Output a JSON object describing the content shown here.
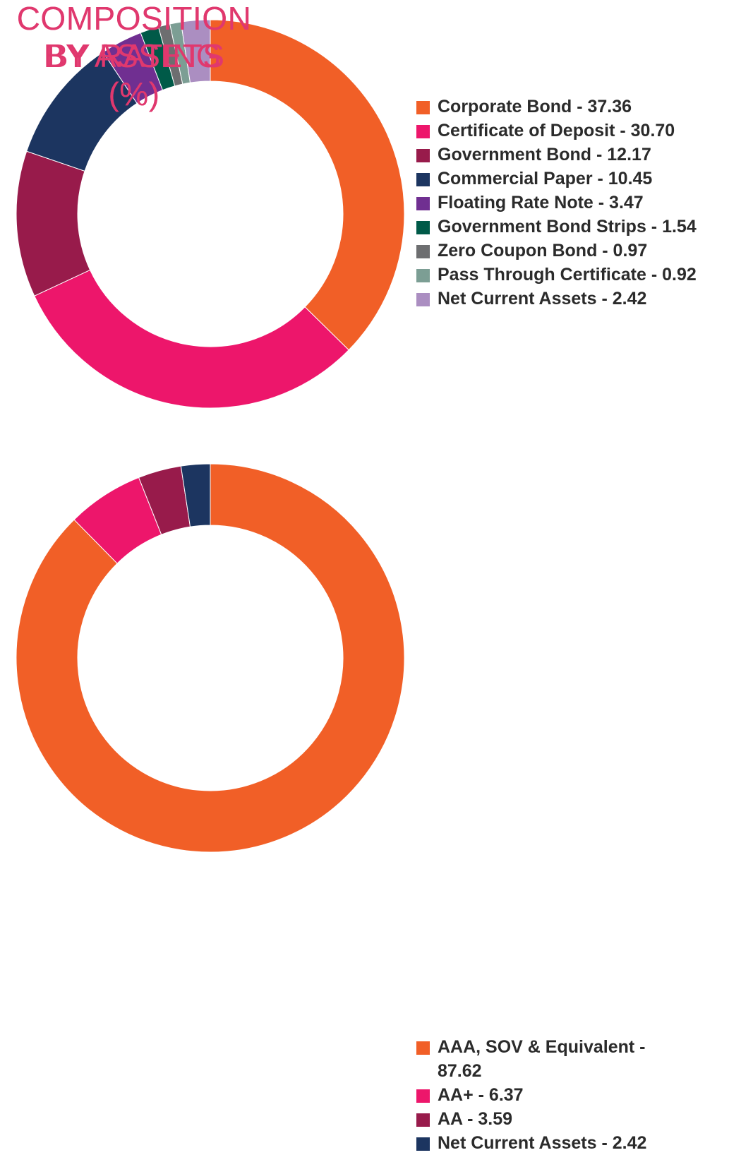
{
  "chart_data": [
    {
      "type": "pie",
      "title_lines": [
        "COMPOSITION",
        "BY ASSETS",
        "(%)"
      ],
      "slices": [
        {
          "label": "Corporate Bond - 37.36",
          "name": "Corporate Bond",
          "value": 37.36,
          "color": "#f15f27"
        },
        {
          "label": "Certificate of Deposit - 30.70",
          "name": "Certificate of Deposit",
          "value": 30.7,
          "color": "#ed166b"
        },
        {
          "label": "Government Bond - 12.17",
          "name": "Government Bond",
          "value": 12.17,
          "color": "#981b4b"
        },
        {
          "label": "Commercial Paper - 10.45",
          "name": "Commercial Paper",
          "value": 10.45,
          "color": "#1c3560"
        },
        {
          "label": "Floating Rate Note - 3.47",
          "name": "Floating Rate Note",
          "value": 3.47,
          "color": "#702f91"
        },
        {
          "label": "Government Bond Strips - 1.54",
          "name": "Government Bond Strips",
          "value": 1.54,
          "color": "#005a48"
        },
        {
          "label": "Zero Coupon Bond - 0.97",
          "name": "Zero Coupon Bond",
          "value": 0.97,
          "color": "#6d6e70"
        },
        {
          "label": "Pass Through Certificate - 0.92",
          "name": "Pass Through Certificate",
          "value": 0.92,
          "color": "#7c9e94"
        },
        {
          "label": "Net Current Assets - 2.42",
          "name": "Net Current Assets",
          "value": 2.42,
          "color": "#ab8ec1"
        }
      ]
    },
    {
      "type": "pie",
      "title_lines": [
        "COMPOSITION",
        "BY RATING",
        "(%)"
      ],
      "slices": [
        {
          "label": "AAA, SOV & Equivalent - 87.62",
          "name": "AAA, SOV & Equivalent",
          "value": 87.62,
          "color": "#f15f27"
        },
        {
          "label": "AA+ - 6.37",
          "name": "AA+",
          "value": 6.37,
          "color": "#ed166b"
        },
        {
          "label": "AA - 3.59",
          "name": "AA",
          "value": 3.59,
          "color": "#981b4b"
        },
        {
          "label": "Net Current Assets - 2.42",
          "name": "Net Current Assets",
          "value": 2.42,
          "color": "#1c3560"
        }
      ]
    }
  ]
}
